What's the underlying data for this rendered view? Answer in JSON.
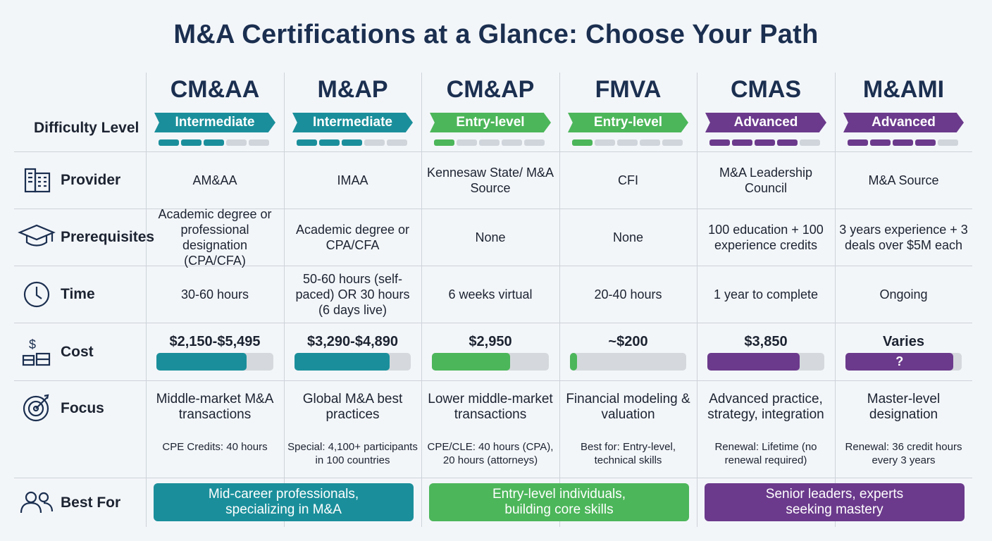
{
  "title": "M&A Certifications at a Glance: Choose Your Path",
  "row_labels": {
    "difficulty": "Difficulty Level",
    "provider": "Provider",
    "prerequisites": "Prerequisites",
    "time": "Time",
    "cost": "Cost",
    "focus": "Focus",
    "best_for": "Best For"
  },
  "certifications": [
    {
      "name": "CM&AA",
      "level": "Intermediate",
      "level_segments": 3,
      "color": "#1a8f9b",
      "provider": "AM&AA",
      "prerequisites": "Academic degree or professional designation (CPA/CFA)",
      "time": "30-60 hours",
      "cost": "$2,150-$5,495",
      "cost_bar": 77,
      "focus": "Middle-market M&A transactions",
      "note": "CPE Credits: 40 hours"
    },
    {
      "name": "M&AP",
      "level": "Intermediate",
      "level_segments": 3,
      "color": "#1a8f9b",
      "provider": "IMAA",
      "prerequisites": "Academic degree or CPA/CFA",
      "time": "50-60 hours (self-paced) OR 30 hours (6 days live)",
      "cost": "$3,290-$4,890",
      "cost_bar": 82,
      "focus": "Global M&A best practices",
      "note": "Special: 4,100+ participants in 100 countries"
    },
    {
      "name": "CM&AP",
      "level": "Entry-level",
      "level_segments": 1,
      "color": "#4cb65a",
      "provider": "Kennesaw State/ M&A Source",
      "prerequisites": "None",
      "time": "6 weeks virtual",
      "cost": "$2,950",
      "cost_bar": 67,
      "focus": "Lower middle-market transactions",
      "note": "CPE/CLE: 40 hours (CPA), 20 hours (attorneys)"
    },
    {
      "name": "FMVA",
      "level": "Entry-level",
      "level_segments": 1,
      "color": "#4cb65a",
      "provider": "CFI",
      "prerequisites": "None",
      "time": "20-40 hours",
      "cost": "~$200",
      "cost_bar": 6,
      "focus": "Financial modeling & valuation",
      "note": "Best for: Entry-level, technical skills"
    },
    {
      "name": "CMAS",
      "level": "Advanced",
      "level_segments": 4,
      "color": "#6b3a8c",
      "provider": "M&A Leadership Council",
      "prerequisites": "100 education + 100 experience credits",
      "time": "1 year to complete",
      "cost": "$3,850",
      "cost_bar": 79,
      "focus": "Advanced practice, strategy, integration",
      "note": "Renewal: Lifetime (no renewal required)"
    },
    {
      "name": "M&AMI",
      "level": "Advanced",
      "level_segments": 4,
      "color": "#6b3a8c",
      "provider": "M&A Source",
      "prerequisites": "3 years experience + 3 deals over $5M each",
      "time": "Ongoing",
      "cost": "Varies",
      "cost_bar": 93,
      "cost_bar_text": "?",
      "focus": "Master-level designation",
      "note": "Renewal: 36 credit hours every 3 years"
    }
  ],
  "best_for": [
    {
      "text": "Mid-career professionals, specializing in M&A",
      "color": "#1a8f9b"
    },
    {
      "text": "Entry-level individuals, building core skills",
      "color": "#4cb65a"
    },
    {
      "text": "Senior leaders, experts seeking mastery",
      "color": "#6b3a8c"
    }
  ]
}
